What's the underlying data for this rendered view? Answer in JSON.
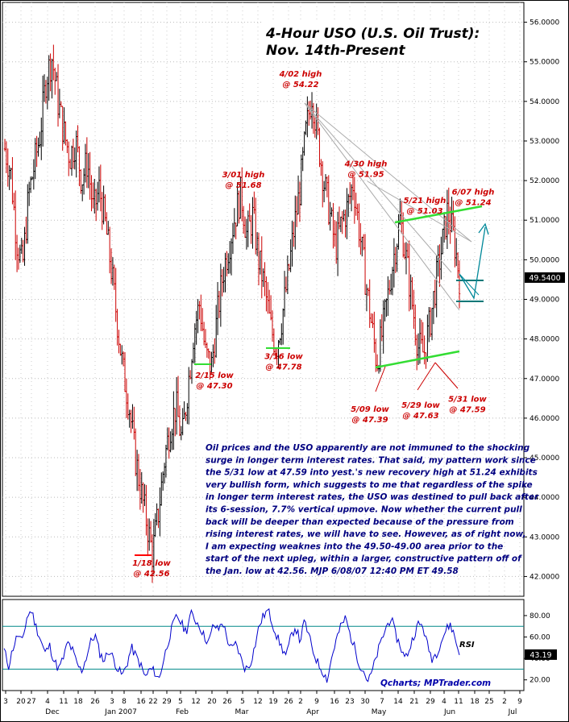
{
  "chart_data": [
    {
      "type": "candlestick",
      "title": "4-Hour USO (U.S. Oil Trust):",
      "subtitle": "Nov. 14th-Present",
      "ylim": [
        41.5,
        56.5
      ],
      "y_ticks": [
        "42.0000",
        "43.0000",
        "44.0000",
        "45.0000",
        "46.0000",
        "47.0000",
        "48.0000",
        "49.0000",
        "50.0000",
        "51.0000",
        "52.0000",
        "53.0000",
        "54.0000",
        "55.0000",
        "56.0000"
      ],
      "y_tick_values": [
        42,
        43,
        44,
        45,
        46,
        47,
        48,
        49,
        50,
        51,
        52,
        53,
        54,
        55,
        56
      ],
      "last_price_label": "49.5400",
      "last_price": 49.54,
      "x_day_labels": [
        "3",
        "20",
        "27",
        "4",
        "11",
        "18",
        "26",
        "3",
        "8",
        "16",
        "22",
        "29",
        "5",
        "12",
        "20",
        "26",
        "5",
        "12",
        "19",
        "26",
        "2",
        "9",
        "16",
        "23",
        "30",
        "7",
        "14",
        "21",
        "29",
        "4",
        "11",
        "18",
        "25",
        "2",
        "9"
      ],
      "x_month_labels": [
        "Dec",
        "Jan 2007",
        "Feb",
        "Mar",
        "Apr",
        "May",
        "Jun",
        "Jul"
      ],
      "price_path": [
        52.8,
        52.2,
        50.5,
        49.8,
        51.6,
        52.4,
        53.2,
        54.6,
        55.1,
        54.0,
        53.2,
        52.6,
        53.0,
        52.0,
        52.5,
        51.2,
        51.8,
        50.9,
        49.8,
        48.5,
        47.2,
        46.4,
        45.1,
        44.2,
        43.4,
        42.56,
        43.6,
        44.9,
        45.8,
        46.3,
        45.4,
        46.8,
        48.2,
        48.9,
        47.6,
        47.3,
        48.6,
        49.7,
        50.4,
        51.1,
        51.68,
        50.6,
        51.1,
        50.0,
        49.3,
        48.3,
        47.78,
        48.6,
        49.6,
        50.8,
        51.8,
        53.2,
        54.22,
        53.1,
        52.0,
        51.2,
        50.3,
        50.9,
        51.3,
        51.95,
        50.8,
        49.6,
        48.5,
        47.39,
        48.2,
        49.2,
        50.2,
        51.03,
        50.0,
        48.9,
        47.8,
        47.63,
        48.4,
        49.4,
        50.3,
        51.24,
        50.6,
        49.58
      ],
      "annotations": [
        {
          "text_lines": [
            "4/02 high",
            "@ 54.22"
          ],
          "x": 3.3,
          "y": 54.22,
          "pos": "above"
        },
        {
          "text_lines": [
            "3/01 high",
            "@ 51.68"
          ],
          "x": 2.5,
          "y": 51.68,
          "pos": "above"
        },
        {
          "text_lines": [
            "4/30 high",
            "@ 51.95"
          ],
          "x": 4.0,
          "y": 51.95,
          "pos": "above"
        },
        {
          "text_lines": [
            "5/21 high",
            "@ 51.03"
          ],
          "x": 4.7,
          "y": 51.03,
          "pos": "above"
        },
        {
          "text_lines": [
            "6/07 high",
            "@ 51.24"
          ],
          "x": 5.25,
          "y": 51.24,
          "pos": "above"
        },
        {
          "text_lines": [
            "2/15 low",
            "@ 47.30"
          ],
          "x": 2.1,
          "y": 47.3,
          "pos": "below"
        },
        {
          "text_lines": [
            "3/16 low",
            "@ 47.78"
          ],
          "x": 2.95,
          "y": 47.78,
          "pos": "below"
        },
        {
          "text_lines": [
            "1/18 low",
            "@ 42.56"
          ],
          "x": 1.5,
          "y": 42.56,
          "pos": "below"
        },
        {
          "text_lines": [
            "5/09 low",
            "@ 47.39"
          ],
          "x": 4.05,
          "y": 46.45,
          "pos": "below"
        },
        {
          "text_lines": [
            "5/29 low",
            "@ 47.63"
          ],
          "x": 4.8,
          "y": 46.55,
          "pos": "below"
        },
        {
          "text_lines": [
            "5/31 low",
            "@ 47.59"
          ],
          "x": 5.35,
          "y": 46.7,
          "pos": "below"
        }
      ],
      "commentary": [
        "Oil prices and the USO apparently are not immuned to the shocking",
        "surge in longer term interest rates. That said, my pattern work since",
        "the 5/31 low at 47.59 into yest.'s new recovery high at 51.24 exhibits",
        "very bullish form, which suggests to me that regardless of the spike",
        "in longer term interest rates, the USO was destined to pull back after",
        "its 6-session, 7.7% vertical upmove. Now whether the current pull",
        "back will be deeper than expected because of the pressure from",
        "rising interest rates, we will have to see. However, as of right now,",
        "I am expecting weaknes into the 49.50-49.00 area prior to the",
        "start of the next upleg, within a larger, constructive pattern off of",
        "the Jan. low at 42.56.  MJP  6/08/07  12:40 PM ET  49.58"
      ]
    },
    {
      "type": "line",
      "series": [
        {
          "name": "RSI"
        }
      ],
      "ylim": [
        10,
        95
      ],
      "y_ticks": [
        "20.00",
        "40.00",
        "60.00",
        "80.00"
      ],
      "y_tick_values": [
        20,
        40,
        60,
        80
      ],
      "reference_lines": [
        30,
        70
      ],
      "last_value_label": "43.19",
      "last_value": 43.19,
      "values": [
        48,
        33,
        50,
        62,
        55,
        78,
        85,
        70,
        58,
        45,
        52,
        38,
        30,
        40,
        55,
        48,
        35,
        28,
        40,
        55,
        62,
        45,
        38,
        48,
        40,
        30,
        24,
        35,
        50,
        42,
        34,
        22,
        30,
        28,
        20,
        38,
        55,
        70,
        80,
        72,
        65,
        82,
        76,
        70,
        60,
        55,
        72,
        66,
        75,
        58,
        48,
        54,
        40,
        30,
        34,
        50,
        70,
        80,
        85,
        72,
        60,
        50,
        42,
        60,
        70,
        56,
        75,
        60,
        45,
        35,
        28,
        20,
        42,
        58,
        70,
        78,
        62,
        50,
        35,
        28,
        18,
        30,
        45,
        58,
        70,
        78,
        62,
        52,
        40,
        48,
        62,
        72,
        70,
        52,
        40,
        45,
        56,
        66,
        72,
        60,
        43.19
      ],
      "watermark": "Qcharts; MPTrader.com"
    }
  ]
}
